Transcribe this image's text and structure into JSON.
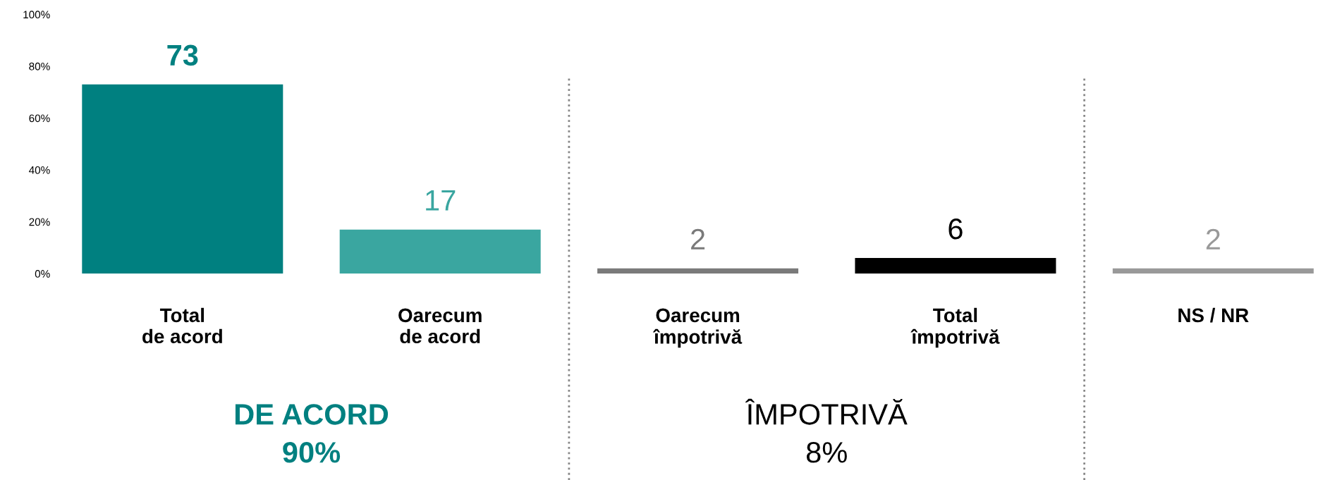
{
  "chart_data": {
    "type": "bar",
    "categories": [
      "Total\nde acord",
      "Oarecum\nde acord",
      "Oarecum\nîmpotrivă",
      "Total\nîmpotrivă",
      "NS / NR"
    ],
    "values": [
      73,
      17,
      2,
      6,
      2
    ],
    "colors": [
      "#008080",
      "#3aa6a0",
      "#7a7a7a",
      "#000000",
      "#999999"
    ],
    "ylim": [
      0,
      100
    ],
    "yticks": [
      {
        "value": 0,
        "label": "0%"
      },
      {
        "value": 20,
        "label": "20%"
      },
      {
        "value": 40,
        "label": "40%"
      },
      {
        "value": 60,
        "label": "60%"
      },
      {
        "value": 80,
        "label": "80%"
      },
      {
        "value": 100,
        "label": "100%"
      }
    ],
    "data_labels": true,
    "grid": false,
    "annotations": [
      "DE ACORD\n90%",
      "ÎMPOTRIVĂ\n8%"
    ]
  }
}
